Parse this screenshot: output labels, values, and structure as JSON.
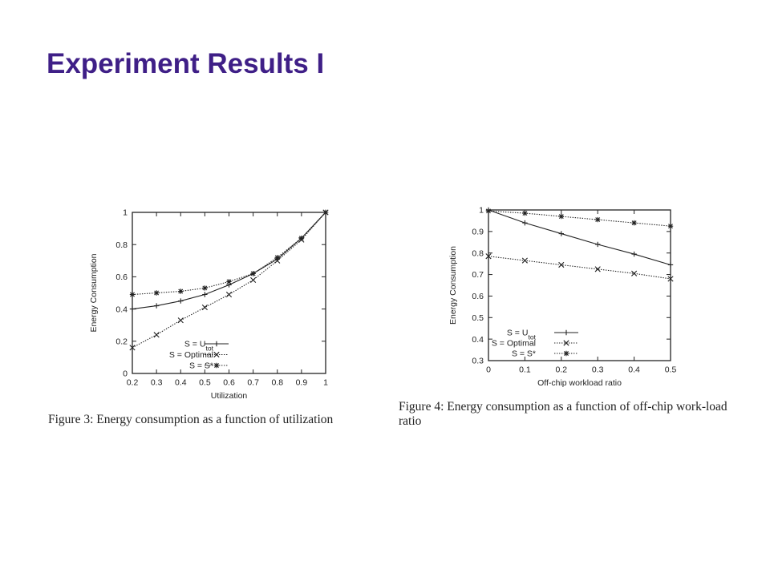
{
  "slide": {
    "title": "Experiment Results I"
  },
  "figures": [
    {
      "caption": "Figure 3: Energy consumption as a function of utilization"
    },
    {
      "caption": "Figure 4: Energy consumption as a function of off-chip work-load ratio"
    }
  ],
  "chart_data": [
    {
      "type": "line",
      "xlabel": "Utilization",
      "ylabel": "Energy Consumption",
      "xlim": [
        0.2,
        1
      ],
      "ylim": [
        0,
        1
      ],
      "x_ticks": [
        "0.2",
        "0.3",
        "0.4",
        "0.5",
        "0.6",
        "0.7",
        "0.8",
        "0.9",
        "1"
      ],
      "y_ticks": [
        "0",
        "0.2",
        "0.4",
        "0.6",
        "0.8",
        "1"
      ],
      "grid": false,
      "legend_position": "bottom-right",
      "x": [
        0.2,
        0.3,
        0.4,
        0.5,
        0.6,
        0.7,
        0.8,
        0.9,
        1.0
      ],
      "series": [
        {
          "name": "S = Utot",
          "legend_main": "S = U",
          "legend_sub": "tot",
          "marker": "+",
          "dash": "solid",
          "values": [
            0.4,
            0.42,
            0.45,
            0.49,
            0.55,
            0.62,
            0.71,
            0.84,
            1.0
          ]
        },
        {
          "name": "S = Optimal",
          "marker": "x",
          "dash": "dotted",
          "values": [
            0.16,
            0.24,
            0.33,
            0.41,
            0.49,
            0.58,
            0.7,
            0.83,
            1.0
          ]
        },
        {
          "name": "S = S*",
          "marker": "*",
          "dash": "dotted",
          "values": [
            0.49,
            0.5,
            0.51,
            0.53,
            0.57,
            0.62,
            0.72,
            0.84,
            1.0
          ]
        }
      ]
    },
    {
      "type": "line",
      "xlabel": "Off-chip workload ratio",
      "ylabel": "Energy Consumption",
      "xlim": [
        0,
        0.5
      ],
      "ylim": [
        0.3,
        1
      ],
      "x_ticks": [
        "0",
        "0.1",
        "0.2",
        "0.3",
        "0.4",
        "0.5"
      ],
      "y_ticks": [
        "0.3",
        "0.4",
        "0.5",
        "0.6",
        "0.7",
        "0.8",
        "0.9",
        "1"
      ],
      "grid": false,
      "legend_position": "bottom-left",
      "x": [
        0,
        0.1,
        0.2,
        0.3,
        0.4,
        0.5
      ],
      "series": [
        {
          "name": "S = Utot",
          "legend_main": "S = U",
          "legend_sub": "tot",
          "marker": "+",
          "dash": "solid",
          "values": [
            1.0,
            0.94,
            0.89,
            0.84,
            0.795,
            0.745
          ]
        },
        {
          "name": "S = Optimal",
          "marker": "x",
          "dash": "dotted",
          "values": [
            0.785,
            0.765,
            0.745,
            0.725,
            0.705,
            0.68
          ]
        },
        {
          "name": "S = S*",
          "marker": "*",
          "dash": "dotted",
          "values": [
            0.995,
            0.985,
            0.97,
            0.955,
            0.94,
            0.925
          ]
        }
      ]
    }
  ]
}
